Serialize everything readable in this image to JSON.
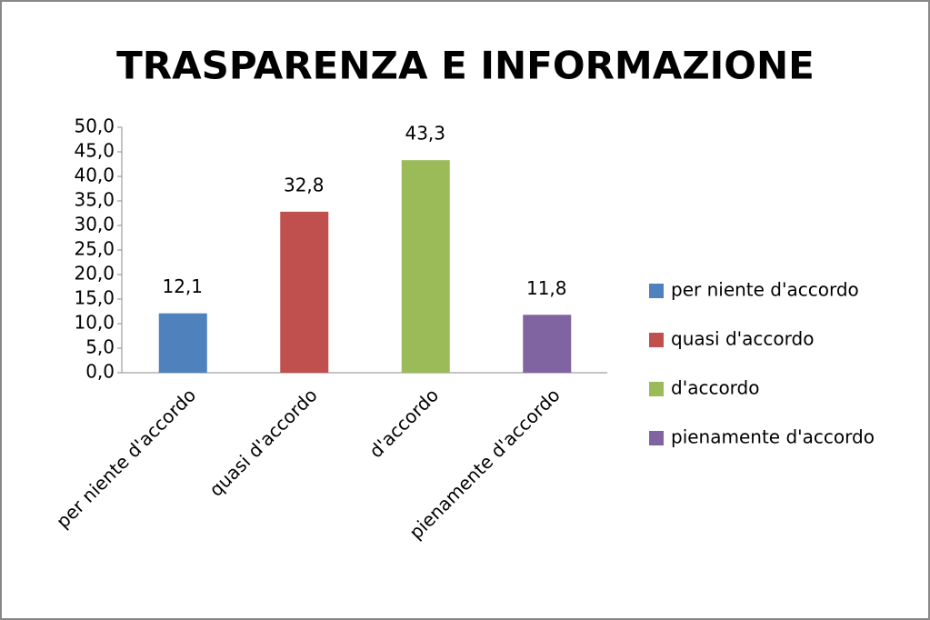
{
  "chart_data": {
    "type": "bar",
    "title": "TRASPARENZA E INFORMAZIONE",
    "categories": [
      "per niente d'accordo",
      "quasi d'accordo",
      "d'accordo",
      "pienamente d'accordo"
    ],
    "values": [
      12.1,
      32.8,
      43.3,
      11.8
    ],
    "value_labels": [
      "12,1",
      "32,8",
      "43,3",
      "11,8"
    ],
    "colors": [
      "#4f81bd",
      "#c0504d",
      "#9bbb59",
      "#8064a2"
    ],
    "ylim": [
      0,
      50
    ],
    "yticks": [
      {
        "value": 0,
        "label": "0,0"
      },
      {
        "value": 5,
        "label": "5,0"
      },
      {
        "value": 10,
        "label": "10,0"
      },
      {
        "value": 15,
        "label": "15,0"
      },
      {
        "value": 20,
        "label": "20,0"
      },
      {
        "value": 25,
        "label": "25,0"
      },
      {
        "value": 30,
        "label": "30,0"
      },
      {
        "value": 35,
        "label": "35,0"
      },
      {
        "value": 40,
        "label": "40,0"
      },
      {
        "value": 45,
        "label": "45,0"
      },
      {
        "value": 50,
        "label": "50,0"
      }
    ],
    "grid": false,
    "legend": "right"
  }
}
